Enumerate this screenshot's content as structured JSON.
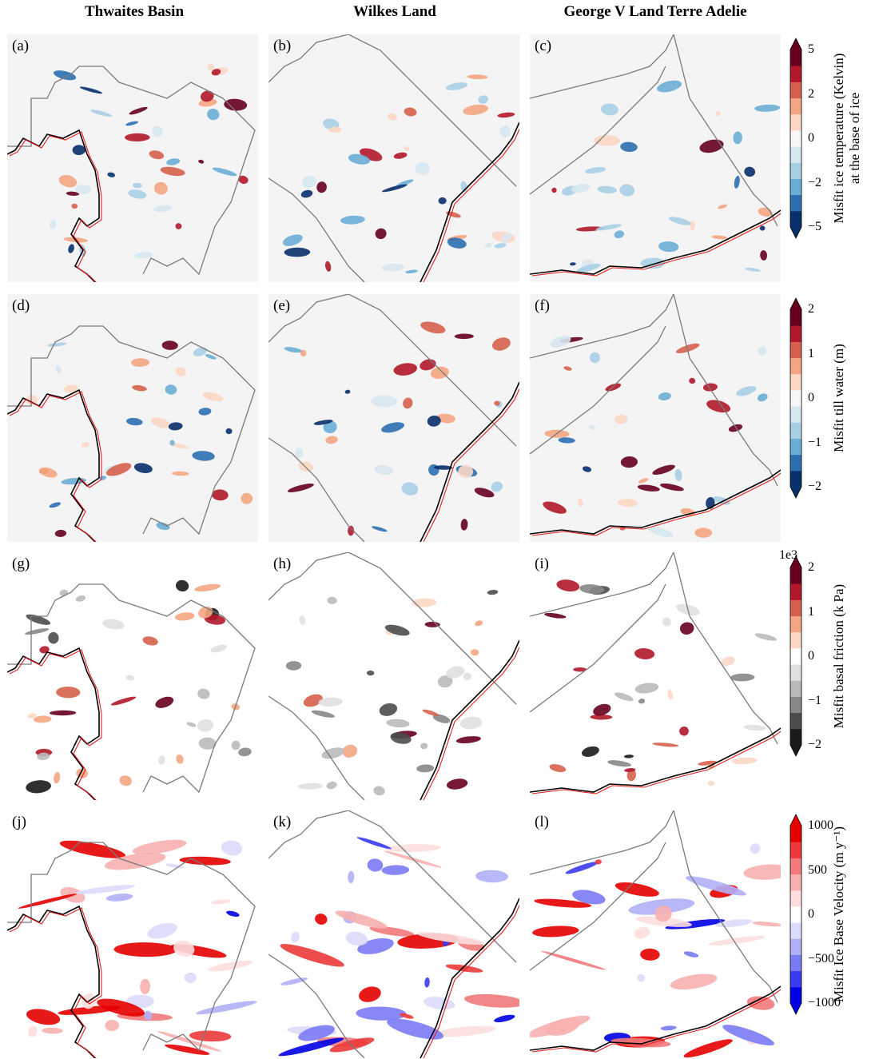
{
  "columns": [
    "Thwaites Basin",
    "Wilkes Land",
    "George V Land Terre Adelie"
  ],
  "panel_labels": [
    "(a)",
    "(b)",
    "(c)",
    "(d)",
    "(e)",
    "(f)",
    "(g)",
    "(h)",
    "(i)",
    "(j)",
    "(k)",
    "(l)"
  ],
  "chart_data": [
    {
      "type": "heatmap",
      "row": 1,
      "panels": [
        "(a)",
        "(b)",
        "(c)"
      ],
      "colorbar": {
        "label_lines": [
          "Misfit ice temperature (Kelvin)",
          "at the base of ice"
        ],
        "ticks": [
          "5",
          "2",
          "0",
          "−2",
          "−5"
        ],
        "range": [
          -5,
          5
        ],
        "colors": [
          "#08306b",
          "#2c6fb0",
          "#6aaed6",
          "#a9cfe5",
          "#d7e7f1",
          "#f7f7f7",
          "#fbd7c4",
          "#f4a582",
          "#d6604d",
          "#b2182b",
          "#67001f"
        ]
      }
    },
    {
      "type": "heatmap",
      "row": 2,
      "panels": [
        "(d)",
        "(e)",
        "(f)"
      ],
      "colorbar": {
        "label_lines": [
          "Misfit till water (m)"
        ],
        "ticks": [
          "2",
          "1",
          "0",
          "−1",
          "−2"
        ],
        "range": [
          -2,
          2
        ],
        "colors": [
          "#08306b",
          "#2c6fb0",
          "#6aaed6",
          "#a9cfe5",
          "#d7e7f1",
          "#f7f7f7",
          "#fbd7c4",
          "#f4a582",
          "#d6604d",
          "#b2182b",
          "#67001f"
        ]
      }
    },
    {
      "type": "heatmap",
      "row": 3,
      "panels": [
        "(g)",
        "(h)",
        "(i)"
      ],
      "colorbar": {
        "scale_note": "1e3",
        "label_lines": [
          "Misfit basal friction (k Pa)"
        ],
        "ticks": [
          "2",
          "1",
          "0",
          "−1",
          "−2"
        ],
        "range": [
          -2,
          2
        ],
        "colors": [
          "#1a1a1a",
          "#4d4d4d",
          "#878787",
          "#bababa",
          "#e0e0e0",
          "#ffffff",
          "#fbd7c4",
          "#f4a582",
          "#d6604d",
          "#b2182b",
          "#67001f"
        ]
      }
    },
    {
      "type": "heatmap",
      "row": 4,
      "panels": [
        "(j)",
        "(k)",
        "(l)"
      ],
      "colorbar": {
        "label_lines": [
          "Misfit Ice Base Velocity (m y⁻¹)"
        ],
        "ticks": [
          "1000",
          "500",
          "0",
          "−500",
          "−1000"
        ],
        "range": [
          -1000,
          1000
        ],
        "colors": [
          "#0000e6",
          "#3a3af0",
          "#7a7af5",
          "#b0b0f8",
          "#dcdcfb",
          "#ffffff",
          "#fcdede",
          "#f8b0b0",
          "#f27a7a",
          "#ec3a3a",
          "#e60000"
        ]
      }
    }
  ]
}
